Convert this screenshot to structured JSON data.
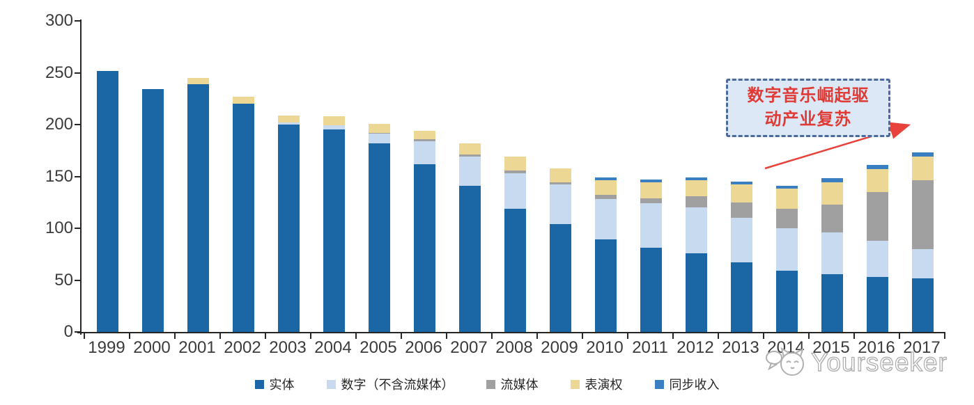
{
  "chart_data": {
    "type": "bar",
    "stacked": true,
    "title": "",
    "xlabel": "",
    "ylabel": "",
    "categories": [
      "1999",
      "2000",
      "2001",
      "2002",
      "2003",
      "2004",
      "2005",
      "2006",
      "2007",
      "2008",
      "2009",
      "2010",
      "2011",
      "2012",
      "2013",
      "2014",
      "2015",
      "2016",
      "2017"
    ],
    "series": [
      {
        "name": "实体",
        "slug": "physical",
        "color": "#1B67A6",
        "values": [
          252,
          234,
          239,
          220,
          200,
          195,
          182,
          162,
          141,
          119,
          104,
          89,
          81,
          76,
          67,
          59,
          56,
          53,
          52
        ]
      },
      {
        "name": "数字（不含流媒体）",
        "slug": "digital",
        "color": "#C7DAEF",
        "values": [
          0,
          0,
          0,
          0,
          2,
          4,
          9,
          22,
          28,
          34,
          38,
          39,
          43,
          44,
          43,
          41,
          40,
          35,
          28
        ]
      },
      {
        "name": "流媒体",
        "slug": "streaming",
        "color": "#A0A0A0",
        "values": [
          0,
          0,
          0,
          0,
          0,
          0,
          1,
          2,
          2,
          3,
          2,
          4,
          5,
          11,
          15,
          19,
          27,
          47,
          66
        ]
      },
      {
        "name": "表演权",
        "slug": "performance",
        "color": "#ECD795",
        "values": [
          0,
          0,
          6,
          7,
          7,
          9,
          9,
          8,
          11,
          13,
          14,
          14,
          15,
          15,
          17,
          19,
          21,
          22,
          23
        ]
      },
      {
        "name": "同步收入",
        "slug": "sync",
        "color": "#3A7FC2",
        "values": [
          0,
          0,
          0,
          0,
          0,
          0,
          0,
          0,
          0,
          0,
          0,
          3,
          3,
          3,
          3,
          3,
          4,
          4,
          4
        ]
      }
    ],
    "ylim": [
      0,
      300
    ],
    "yticks": [
      0,
      50,
      100,
      150,
      200,
      250,
      300
    ],
    "grid": false,
    "legend_position": "bottom"
  },
  "annotation": {
    "lines": [
      "数字音乐崛起驱",
      "动产业复苏"
    ],
    "fill_color": "#DCE8F6",
    "border_color": "#4A6A9B",
    "text_color": "#E03A34",
    "arrow_color": "#E8423C"
  },
  "watermark": {
    "text": "Yourseeker",
    "logo": "cat-face-with-speech-bubble",
    "color": "#ABABAB"
  }
}
